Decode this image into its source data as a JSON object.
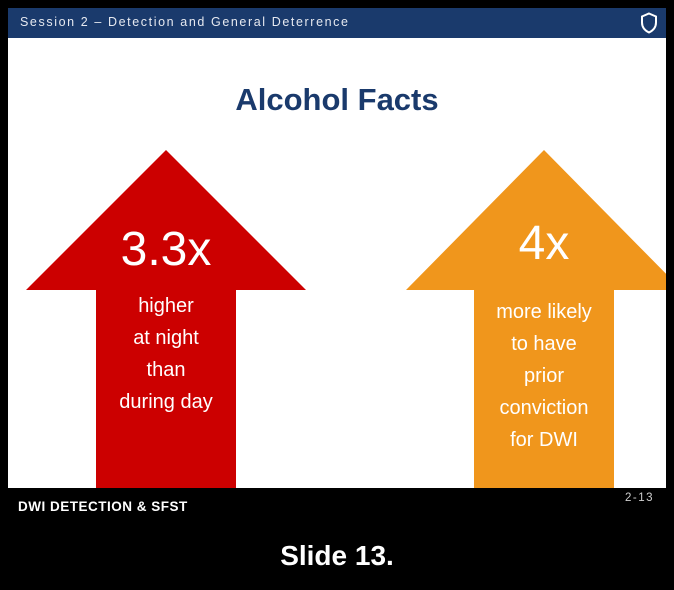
{
  "header": {
    "session_title": "Session 2 – Detection and General Deterrence",
    "icon": "shield-icon"
  },
  "slide": {
    "title": "Alcohol Facts",
    "arrows": [
      {
        "value": "3.3x",
        "lines": [
          "higher",
          "at night",
          "than",
          "during day"
        ],
        "color": "#cc0000"
      },
      {
        "value": "4x",
        "lines": [
          "more likely",
          "to have",
          "prior",
          "conviction",
          "for DWI"
        ],
        "color": "#f0961c"
      }
    ]
  },
  "footer": {
    "course": "DWI DETECTION & SFST",
    "slide_number": "2-13",
    "caption": "Slide 13."
  }
}
